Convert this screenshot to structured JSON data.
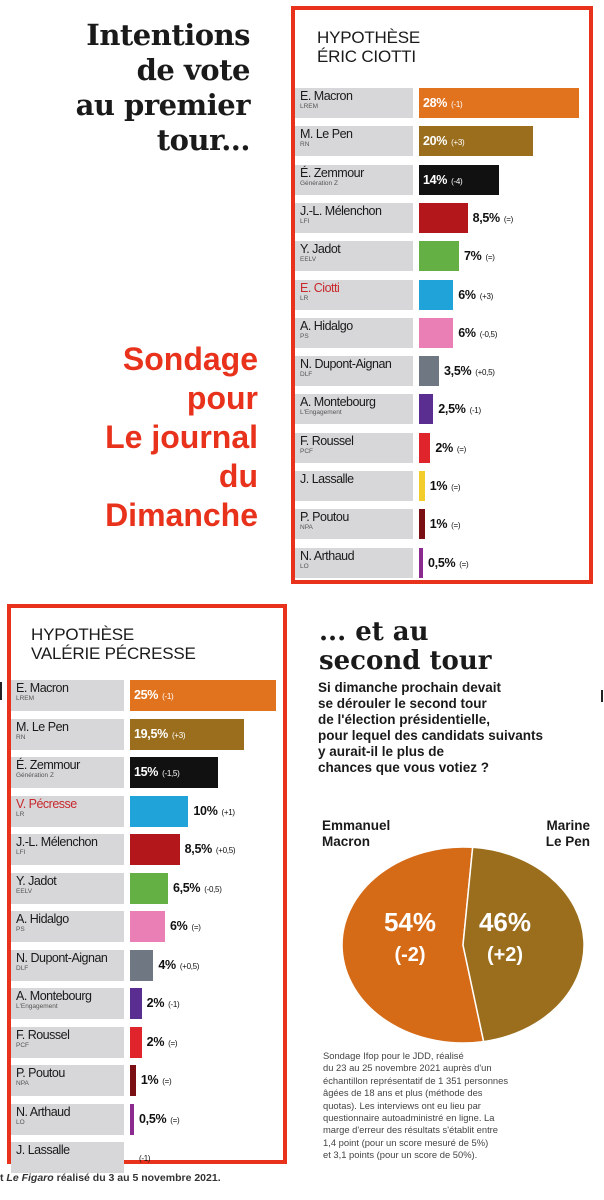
{
  "headline": {
    "lines": [
      "Intentions",
      "de vote",
      "au premier",
      "tour..."
    ]
  },
  "sondage": {
    "lines": [
      "Sondage",
      "pour",
      "Le journal",
      "du",
      "Dimanche"
    ]
  },
  "colors": {
    "accent_red": "#e8321c",
    "name_cell": "#d7d7d9",
    "macron": "#e1731f",
    "le_pen": "#9a6e1c"
  },
  "chart_data": [
    {
      "type": "bar",
      "title": "HYPOTHÈSE ÉRIC CIOTTI",
      "title_lines": [
        "HYPOTHÈSE",
        "ÉRIC CIOTTI"
      ],
      "xlim": [
        0,
        28
      ],
      "candidates": [
        {
          "name": "E. Macron",
          "party": "LREM",
          "value": 28,
          "value_label": "28%",
          "change": "(-1)",
          "color": "#e1731f",
          "highlight": false
        },
        {
          "name": "M. Le Pen",
          "party": "RN",
          "value": 20,
          "value_label": "20%",
          "change": "(+3)",
          "color": "#9a6e1c",
          "highlight": false
        },
        {
          "name": "É. Zemmour",
          "party": "Génération Z",
          "value": 14,
          "value_label": "14%",
          "change": "(-4)",
          "color": "#111111",
          "highlight": false
        },
        {
          "name": "J.-L. Mélenchon",
          "party": "LFI",
          "value": 8.5,
          "value_label": "8,5%",
          "change": "(=)",
          "color": "#b3171c",
          "highlight": false
        },
        {
          "name": "Y. Jadot",
          "party": "EELV",
          "value": 7,
          "value_label": "7%",
          "change": "(=)",
          "color": "#64b044",
          "highlight": false
        },
        {
          "name": "E. Ciotti",
          "party": "LR",
          "value": 6,
          "value_label": "6%",
          "change": "(+3)",
          "color": "#1fa3d8",
          "highlight": true
        },
        {
          "name": "A. Hidalgo",
          "party": "PS",
          "value": 6,
          "value_label": "6%",
          "change": "(-0,5)",
          "color": "#ea7fb6",
          "highlight": false
        },
        {
          "name": "N. Dupont-Aignan",
          "party": "DLF",
          "value": 3.5,
          "value_label": "3,5%",
          "change": "(+0,5)",
          "color": "#6f7783",
          "highlight": false
        },
        {
          "name": "A. Montebourg",
          "party": "L'Engagement",
          "value": 2.5,
          "value_label": "2,5%",
          "change": "(-1)",
          "color": "#5a2d91",
          "highlight": false
        },
        {
          "name": "F. Roussel",
          "party": "PCF",
          "value": 2,
          "value_label": "2%",
          "change": "(=)",
          "color": "#e0242b",
          "highlight": false
        },
        {
          "name": "J. Lassalle",
          "party": "",
          "value": 1,
          "value_label": "1%",
          "change": "(=)",
          "color": "#f2cd2c",
          "highlight": false
        },
        {
          "name": "P. Poutou",
          "party": "NPA",
          "value": 1,
          "value_label": "1%",
          "change": "(=)",
          "color": "#7a1014",
          "highlight": false
        },
        {
          "name": "N. Arthaud",
          "party": "LO",
          "value": 0.5,
          "value_label": "0,5%",
          "change": "(=)",
          "color": "#8b2a8f",
          "highlight": false
        }
      ]
    },
    {
      "type": "bar",
      "title": "HYPOTHÈSE VALÉRIE PÉCRESSE",
      "title_lines": [
        "HYPOTHÈSE",
        "VALÉRIE PÉCRESSE"
      ],
      "xlim": [
        0,
        25
      ],
      "candidates": [
        {
          "name": "E. Macron",
          "party": "LREM",
          "value": 25,
          "value_label": "25%",
          "change": "(-1)",
          "color": "#e1731f",
          "highlight": false
        },
        {
          "name": "M. Le Pen",
          "party": "RN",
          "value": 19.5,
          "value_label": "19,5%",
          "change": "(+3)",
          "color": "#9a6e1c",
          "highlight": false
        },
        {
          "name": "É. Zemmour",
          "party": "Génération Z",
          "value": 15,
          "value_label": "15%",
          "change": "(-1,5)",
          "color": "#111111",
          "highlight": false
        },
        {
          "name": "V. Pécresse",
          "party": "LR",
          "value": 10,
          "value_label": "10%",
          "change": "(+1)",
          "color": "#1fa3d8",
          "highlight": true
        },
        {
          "name": "J.-L. Mélenchon",
          "party": "LFI",
          "value": 8.5,
          "value_label": "8,5%",
          "change": "(+0,5)",
          "color": "#b3171c",
          "highlight": false
        },
        {
          "name": "Y. Jadot",
          "party": "EELV",
          "value": 6.5,
          "value_label": "6,5%",
          "change": "(-0,5)",
          "color": "#64b044",
          "highlight": false
        },
        {
          "name": "A. Hidalgo",
          "party": "PS",
          "value": 6,
          "value_label": "6%",
          "change": "(=)",
          "color": "#ea7fb6",
          "highlight": false
        },
        {
          "name": "N. Dupont-Aignan",
          "party": "DLF",
          "value": 4,
          "value_label": "4%",
          "change": "(+0,5)",
          "color": "#6f7783",
          "highlight": false
        },
        {
          "name": "A. Montebourg",
          "party": "L'Engagement",
          "value": 2,
          "value_label": "2%",
          "change": "(-1)",
          "color": "#5a2d91",
          "highlight": false
        },
        {
          "name": "F. Roussel",
          "party": "PCF",
          "value": 2,
          "value_label": "2%",
          "change": "(=)",
          "color": "#e0242b",
          "highlight": false
        },
        {
          "name": "P. Poutou",
          "party": "NPA",
          "value": 1,
          "value_label": "1%",
          "change": "(=)",
          "color": "#7a1014",
          "highlight": false
        },
        {
          "name": "N. Arthaud",
          "party": "LO",
          "value": 0.5,
          "value_label": "0,5%",
          "change": "(=)",
          "color": "#8b2a8f",
          "highlight": false
        },
        {
          "name": "J. Lassalle",
          "party": "",
          "value": 0,
          "value_label": "",
          "change": "(-1)",
          "color": "#f2cd2c",
          "highlight": false
        }
      ]
    },
    {
      "type": "pie",
      "title_lines": [
        "... et au",
        "second tour"
      ],
      "question_lines": [
        "Si dimanche prochain devait",
        "se dérouler le second tour",
        "de l'élection présidentielle,",
        "pour lequel des candidats suivants",
        "y aurait-il le plus de",
        "chances que vous votiez ?"
      ],
      "slices": [
        {
          "name": "Emmanuel Macron",
          "label_lines": [
            "Emmanuel",
            "Macron"
          ],
          "value": 54,
          "value_label": "54%",
          "change": "(-2)",
          "color": "#d56a17"
        },
        {
          "name": "Marine Le Pen",
          "label_lines": [
            "Marine",
            "Le Pen"
          ],
          "value": 46,
          "value_label": "46%",
          "change": "(+2)",
          "color": "#9a6e1c"
        }
      ]
    }
  ],
  "methodology": {
    "lines": [
      "Sondage Ifop pour le JDD, réalisé",
      "du 23 au 25 novembre 2021 auprès d'un",
      "échantillon représentatif de 1 351 personnes",
      "âgées de 18 ans et plus (méthode des",
      "quotas). Les interviews ont eu lieu par",
      "questionnaire autoadministré en ligne. La",
      "marge d'erreur des résultats s'établit entre",
      "1,4 point (pour un score mesuré de 5%)",
      "et 3,1 points (pour un score de 50%)."
    ]
  },
  "footer": {
    "prefix": "t ",
    "source": "Le Figaro",
    "rest": " réalisé du 3 au 5 novembre 2021."
  }
}
